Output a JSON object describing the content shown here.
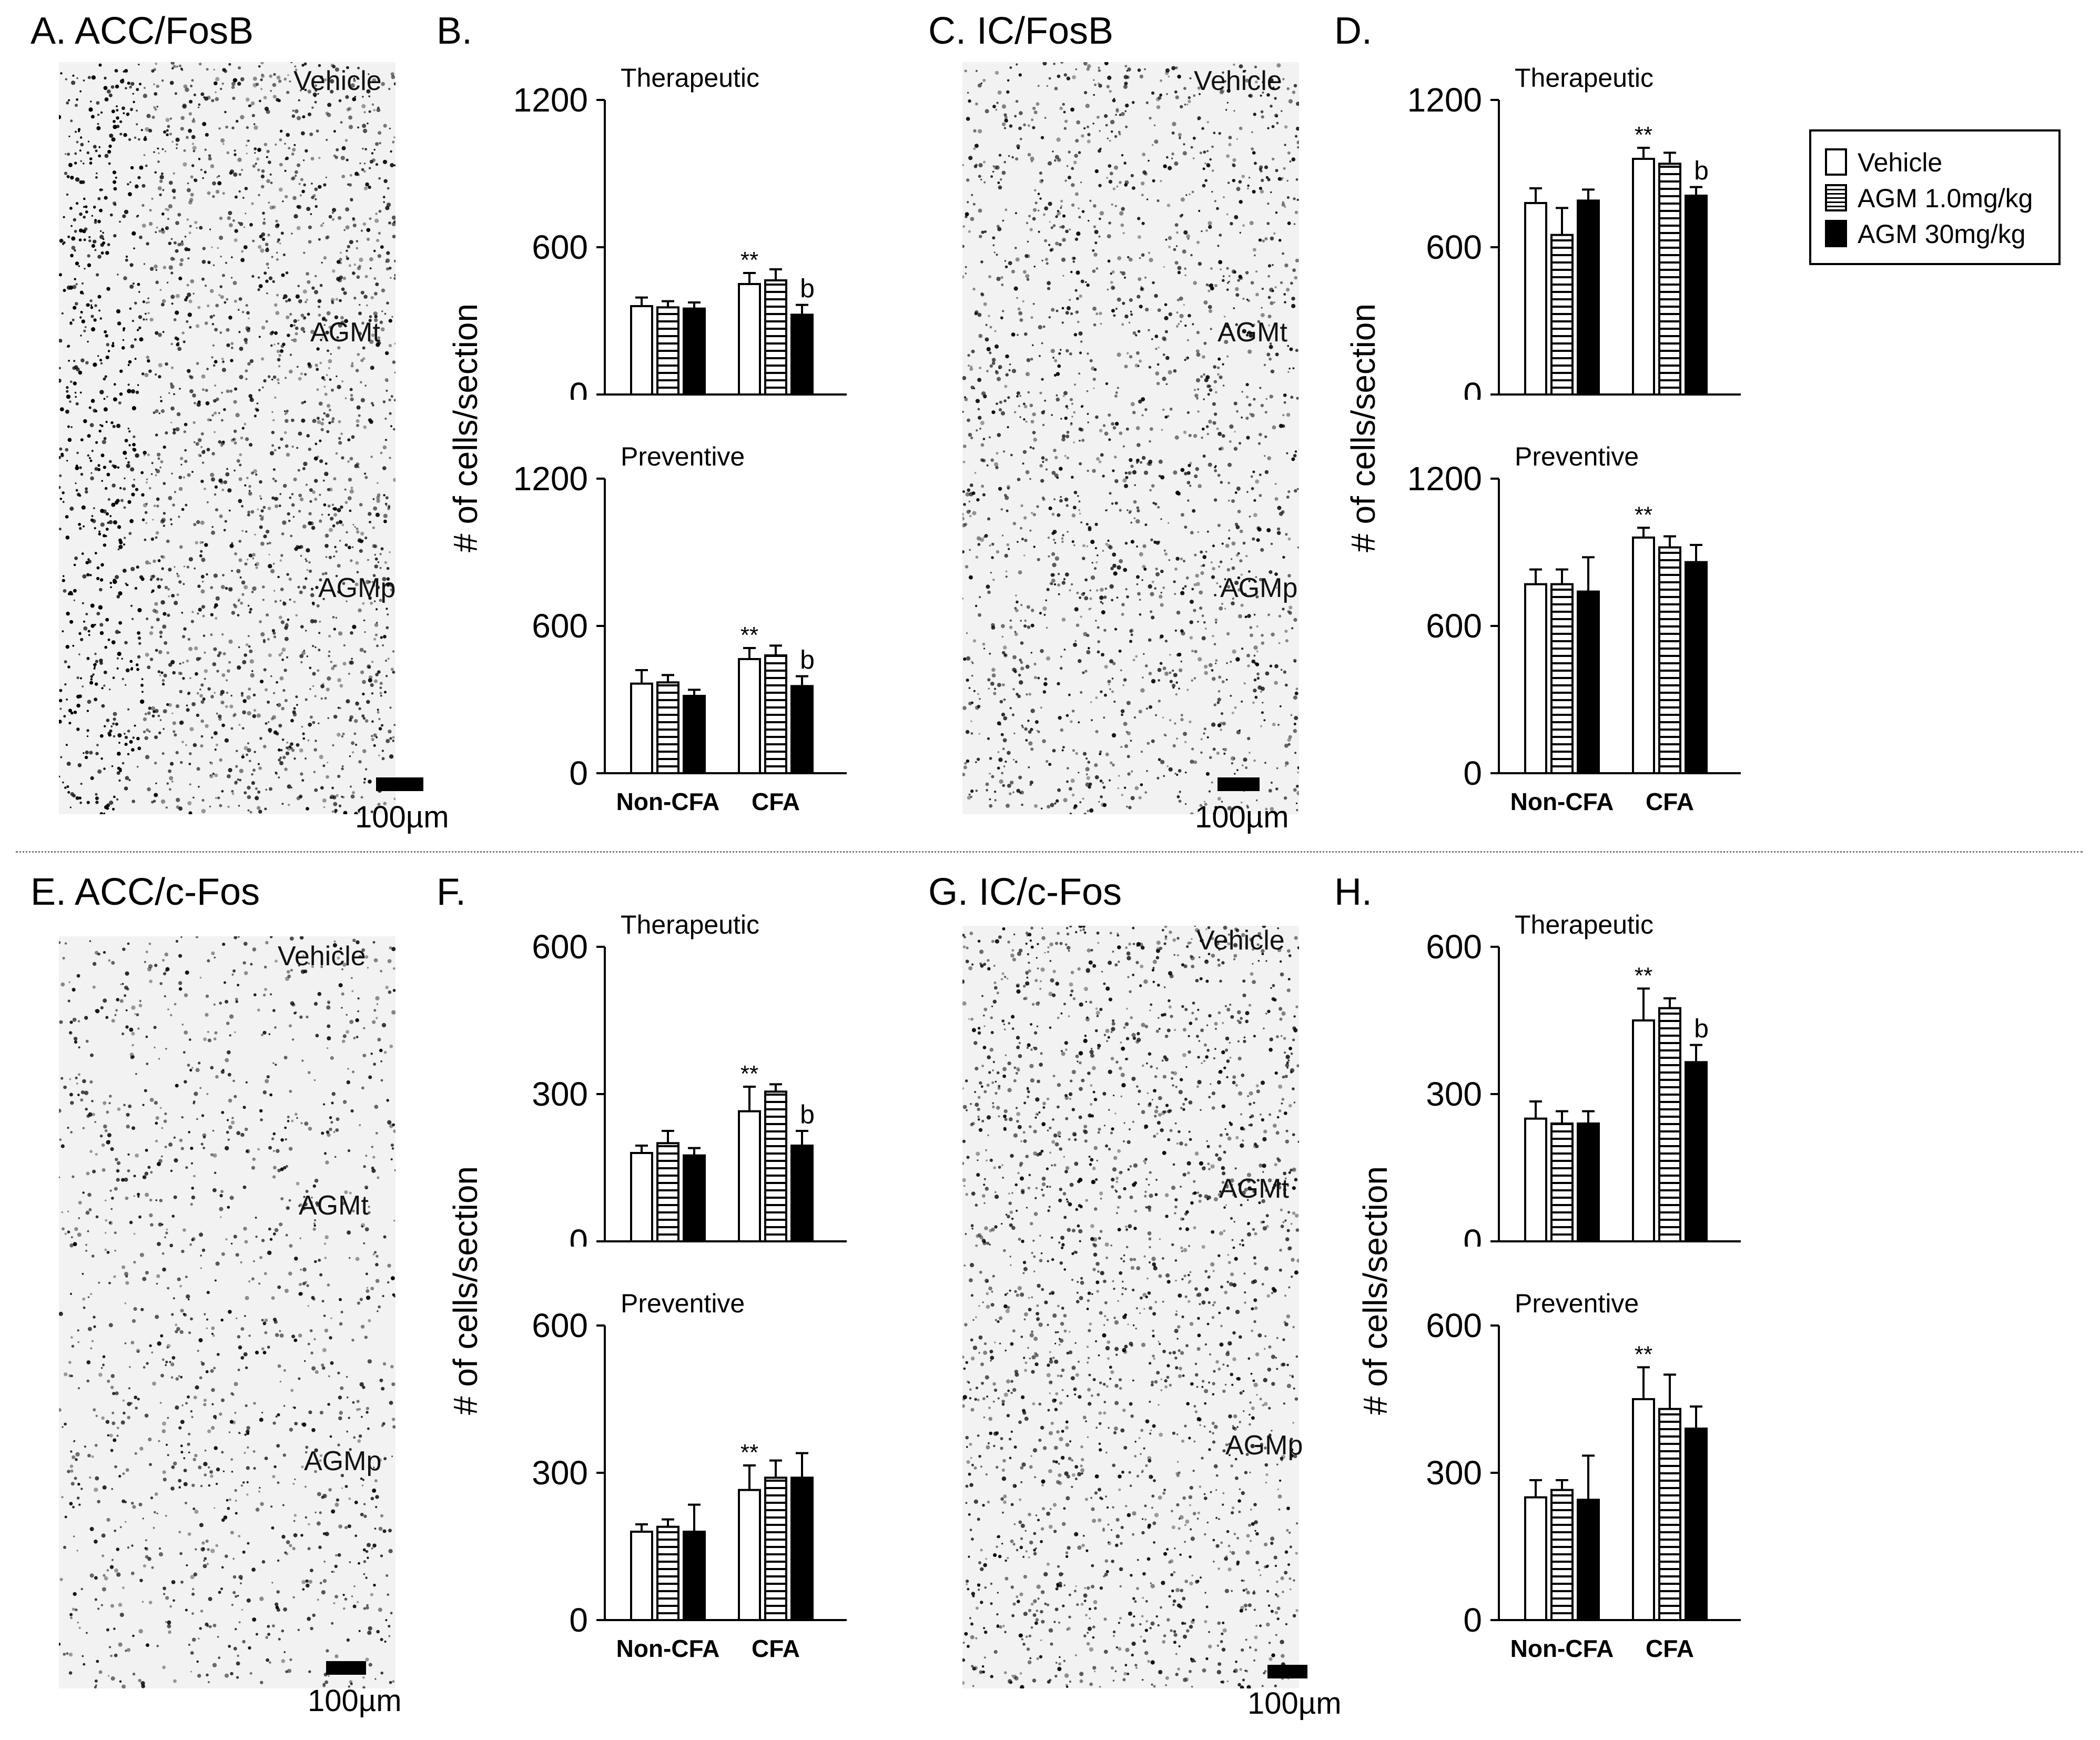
{
  "panels": {
    "A": "A. ACC/FosB",
    "B": "B.",
    "C": "C. IC/FosB",
    "D": "D.",
    "E": "E. ACC/c-Fos",
    "F": "F.",
    "G": "G. IC/c-Fos",
    "H": "H."
  },
  "micrographs": {
    "A": {
      "regions": [
        "Vehicle",
        "AGMt",
        "AGMp"
      ],
      "scale": "100µm"
    },
    "C": {
      "regions": [
        "Vehicle",
        "AGMt",
        "AGMp"
      ],
      "scale": "100µm"
    },
    "E": {
      "regions": [
        "Vehicle",
        "AGMt",
        "AGMp"
      ],
      "scale": "100µm"
    },
    "G": {
      "regions": [
        "Vehicle",
        "AGMt",
        "AGMp"
      ],
      "scale": "100µm"
    }
  },
  "y_axis_label": "# of cells/section",
  "legend": {
    "items": [
      {
        "label": "Vehicle",
        "pattern": "open"
      },
      {
        "label": "AGM 1.0mg/kg",
        "pattern": "striped"
      },
      {
        "label": "AGM 30mg/kg",
        "pattern": "solid"
      }
    ]
  },
  "colors": {
    "bar_fill_open": "#ffffff",
    "bar_fill_solid": "#000000",
    "stroke": "#000000",
    "micro_background": "#f2f2f2"
  },
  "chart_data": [
    {
      "panel": "B",
      "type": "bar",
      "subtitle": "Therapeutic",
      "ylim": [
        0,
        1200
      ],
      "yticks": [
        "0",
        "600",
        "1200"
      ],
      "categories": [
        "Non-CFA",
        "CFA"
      ],
      "show_categories": false,
      "series": [
        {
          "name": "Vehicle",
          "values": [
            360,
            450
          ],
          "errors": [
            35,
            45
          ]
        },
        {
          "name": "AGM 1.0mg/kg",
          "values": [
            355,
            465
          ],
          "errors": [
            25,
            45
          ]
        },
        {
          "name": "AGM 30mg/kg",
          "values": [
            350,
            325
          ],
          "errors": [
            25,
            40
          ]
        }
      ],
      "annotations": [
        {
          "category": 1,
          "series": 0,
          "text": "**"
        },
        {
          "category": 1,
          "series": 2,
          "text": "b"
        }
      ]
    },
    {
      "panel": "B",
      "type": "bar",
      "subtitle": "Preventive",
      "ylim": [
        0,
        1200
      ],
      "yticks": [
        "0",
        "600",
        "1200"
      ],
      "categories": [
        "Non-CFA",
        "CFA"
      ],
      "show_categories": true,
      "series": [
        {
          "name": "Vehicle",
          "values": [
            365,
            465
          ],
          "errors": [
            55,
            45
          ]
        },
        {
          "name": "AGM 1.0mg/kg",
          "values": [
            370,
            480
          ],
          "errors": [
            30,
            40
          ]
        },
        {
          "name": "AGM 30mg/kg",
          "values": [
            315,
            355
          ],
          "errors": [
            25,
            40
          ]
        }
      ],
      "annotations": [
        {
          "category": 1,
          "series": 0,
          "text": "**"
        },
        {
          "category": 1,
          "series": 2,
          "text": "b"
        }
      ]
    },
    {
      "panel": "D",
      "type": "bar",
      "subtitle": "Therapeutic",
      "ylim": [
        0,
        1200
      ],
      "yticks": [
        "0",
        "600",
        "1200"
      ],
      "categories": [
        "Non-CFA",
        "CFA"
      ],
      "show_categories": false,
      "series": [
        {
          "name": "Vehicle",
          "values": [
            780,
            960
          ],
          "errors": [
            60,
            45
          ]
        },
        {
          "name": "AGM 1.0mg/kg",
          "values": [
            650,
            940
          ],
          "errors": [
            110,
            45
          ]
        },
        {
          "name": "AGM 30mg/kg",
          "values": [
            790,
            810
          ],
          "errors": [
            45,
            35
          ]
        }
      ],
      "annotations": [
        {
          "category": 1,
          "series": 0,
          "text": "**"
        },
        {
          "category": 1,
          "series": 2,
          "text": "b"
        }
      ]
    },
    {
      "panel": "D",
      "type": "bar",
      "subtitle": "Preventive",
      "ylim": [
        0,
        1200
      ],
      "yticks": [
        "0",
        "600",
        "1200"
      ],
      "categories": [
        "Non-CFA",
        "CFA"
      ],
      "show_categories": true,
      "series": [
        {
          "name": "Vehicle",
          "values": [
            770,
            960
          ],
          "errors": [
            60,
            40
          ]
        },
        {
          "name": "AGM 1.0mg/kg",
          "values": [
            770,
            920
          ],
          "errors": [
            60,
            45
          ]
        },
        {
          "name": "AGM 30mg/kg",
          "values": [
            740,
            860
          ],
          "errors": [
            140,
            70
          ]
        }
      ],
      "annotations": [
        {
          "category": 1,
          "series": 0,
          "text": "**"
        }
      ]
    },
    {
      "panel": "F",
      "type": "bar",
      "subtitle": "Therapeutic",
      "ylim": [
        0,
        600
      ],
      "yticks": [
        "0",
        "300",
        "600"
      ],
      "categories": [
        "Non-CFA",
        "CFA"
      ],
      "show_categories": false,
      "series": [
        {
          "name": "Vehicle",
          "values": [
            180,
            265
          ],
          "errors": [
            15,
            50
          ]
        },
        {
          "name": "AGM 1.0mg/kg",
          "values": [
            200,
            305
          ],
          "errors": [
            25,
            15
          ]
        },
        {
          "name": "AGM 30mg/kg",
          "values": [
            175,
            195
          ],
          "errors": [
            15,
            30
          ]
        }
      ],
      "annotations": [
        {
          "category": 1,
          "series": 0,
          "text": "**"
        },
        {
          "category": 1,
          "series": 2,
          "text": "b"
        }
      ]
    },
    {
      "panel": "F",
      "type": "bar",
      "subtitle": "Preventive",
      "ylim": [
        0,
        600
      ],
      "yticks": [
        "0",
        "300",
        "600"
      ],
      "categories": [
        "Non-CFA",
        "CFA"
      ],
      "show_categories": true,
      "series": [
        {
          "name": "Vehicle",
          "values": [
            180,
            265
          ],
          "errors": [
            15,
            50
          ]
        },
        {
          "name": "AGM 1.0mg/kg",
          "values": [
            190,
            290
          ],
          "errors": [
            15,
            35
          ]
        },
        {
          "name": "AGM 30mg/kg",
          "values": [
            180,
            290
          ],
          "errors": [
            55,
            50
          ]
        }
      ],
      "annotations": [
        {
          "category": 1,
          "series": 0,
          "text": "**"
        }
      ]
    },
    {
      "panel": "H",
      "type": "bar",
      "subtitle": "Therapeutic",
      "ylim": [
        0,
        600
      ],
      "yticks": [
        "0",
        "300",
        "600"
      ],
      "categories": [
        "Non-CFA",
        "CFA"
      ],
      "show_categories": false,
      "series": [
        {
          "name": "Vehicle",
          "values": [
            250,
            450
          ],
          "errors": [
            35,
            65
          ]
        },
        {
          "name": "AGM 1.0mg/kg",
          "values": [
            240,
            475
          ],
          "errors": [
            25,
            20
          ]
        },
        {
          "name": "AGM 30mg/kg",
          "values": [
            240,
            365
          ],
          "errors": [
            25,
            35
          ]
        }
      ],
      "annotations": [
        {
          "category": 1,
          "series": 0,
          "text": "**"
        },
        {
          "category": 1,
          "series": 2,
          "text": "b"
        }
      ]
    },
    {
      "panel": "H",
      "type": "bar",
      "subtitle": "Preventive",
      "ylim": [
        0,
        600
      ],
      "yticks": [
        "0",
        "300",
        "600"
      ],
      "categories": [
        "Non-CFA",
        "CFA"
      ],
      "show_categories": true,
      "series": [
        {
          "name": "Vehicle",
          "values": [
            250,
            450
          ],
          "errors": [
            35,
            65
          ]
        },
        {
          "name": "AGM 1.0mg/kg",
          "values": [
            265,
            430
          ],
          "errors": [
            20,
            70
          ]
        },
        {
          "name": "AGM 30mg/kg",
          "values": [
            245,
            390
          ],
          "errors": [
            90,
            45
          ]
        }
      ],
      "annotations": [
        {
          "category": 1,
          "series": 0,
          "text": "**"
        }
      ]
    }
  ]
}
